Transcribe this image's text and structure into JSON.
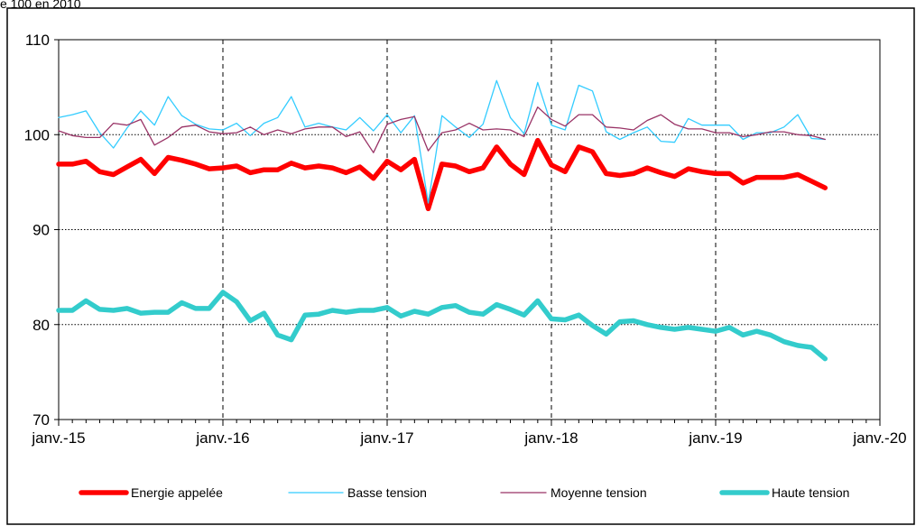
{
  "caption": "e 100 en 2010",
  "chart_data": {
    "type": "line",
    "title": "",
    "xlabel": "",
    "ylabel": "",
    "ylim": [
      70,
      110
    ],
    "yticks": [
      70,
      80,
      90,
      100,
      110
    ],
    "xlim": [
      "2015-01",
      "2020-01"
    ],
    "xticks": [
      "janv.-15",
      "janv.-16",
      "janv.-17",
      "janv.-18",
      "janv.-19",
      "janv.-20"
    ],
    "grid": true,
    "legend_position": "bottom",
    "x_start": "2015-01",
    "series": [
      {
        "name": "Energie appelée",
        "color": "#ff0000",
        "width": "thick",
        "values": [
          96.9,
          96.9,
          97.2,
          96.1,
          95.8,
          96.6,
          97.4,
          95.9,
          97.6,
          97.3,
          96.9,
          96.4,
          96.5,
          96.7,
          96.0,
          96.3,
          96.3,
          97.0,
          96.5,
          96.7,
          96.5,
          96.0,
          96.6,
          95.4,
          97.2,
          96.3,
          97.4,
          92.2,
          96.9,
          96.7,
          96.1,
          96.5,
          98.7,
          96.9,
          95.8,
          99.4,
          96.8,
          96.1,
          98.7,
          98.2,
          95.9,
          95.7,
          95.9,
          96.5,
          96.0,
          95.6,
          96.4,
          96.1,
          95.9,
          95.9,
          94.9,
          95.5,
          95.5,
          95.5,
          95.8,
          95.1,
          94.4
        ]
      },
      {
        "name": "Basse tension",
        "color": "#33ccff",
        "width": "thin",
        "values": [
          101.8,
          102.1,
          102.5,
          100.2,
          98.6,
          100.7,
          102.5,
          101.0,
          104.0,
          102.0,
          101.1,
          100.6,
          100.5,
          101.2,
          99.9,
          101.2,
          101.8,
          104.0,
          100.8,
          101.2,
          100.8,
          100.5,
          101.8,
          100.4,
          102.1,
          100.2,
          102.0,
          92.8,
          102.0,
          100.8,
          99.7,
          101.1,
          105.7,
          101.8,
          100.1,
          105.5,
          101.0,
          100.5,
          105.2,
          104.6,
          100.3,
          99.5,
          100.2,
          100.8,
          99.3,
          99.2,
          101.7,
          101.0,
          101.0,
          101.0,
          99.5,
          100.2,
          100.2,
          100.8,
          102.1,
          99.6,
          99.5
        ]
      },
      {
        "name": "Moyenne tension",
        "color": "#993366",
        "width": "thin",
        "values": [
          100.4,
          99.9,
          99.7,
          99.7,
          101.2,
          101.0,
          101.6,
          98.9,
          99.7,
          100.8,
          101.0,
          100.3,
          100.1,
          100.2,
          100.8,
          100.0,
          100.5,
          100.1,
          100.6,
          100.8,
          100.8,
          99.8,
          100.3,
          98.1,
          101.1,
          101.6,
          101.9,
          98.3,
          100.2,
          100.5,
          101.2,
          100.5,
          100.6,
          100.5,
          99.8,
          102.9,
          101.6,
          100.9,
          102.1,
          102.1,
          100.8,
          100.7,
          100.5,
          101.5,
          102.1,
          101.1,
          100.6,
          100.6,
          100.2,
          100.2,
          99.8,
          100.0,
          100.3,
          100.3,
          100.0,
          99.9,
          99.5
        ]
      },
      {
        "name": "Haute tension",
        "color": "#33cccc",
        "width": "thick",
        "values": [
          81.5,
          81.5,
          82.5,
          81.6,
          81.5,
          81.7,
          81.2,
          81.3,
          81.3,
          82.3,
          81.7,
          81.7,
          83.4,
          82.4,
          80.4,
          81.2,
          78.9,
          78.4,
          81.0,
          81.1,
          81.5,
          81.3,
          81.5,
          81.5,
          81.8,
          80.9,
          81.4,
          81.1,
          81.8,
          82.0,
          81.3,
          81.1,
          82.1,
          81.6,
          81.0,
          82.5,
          80.6,
          80.5,
          81.0,
          79.9,
          79.0,
          80.3,
          80.4,
          80.0,
          79.7,
          79.5,
          79.7,
          79.5,
          79.3,
          79.7,
          78.9,
          79.3,
          78.9,
          78.2,
          77.8,
          77.6,
          76.4
        ]
      }
    ]
  }
}
